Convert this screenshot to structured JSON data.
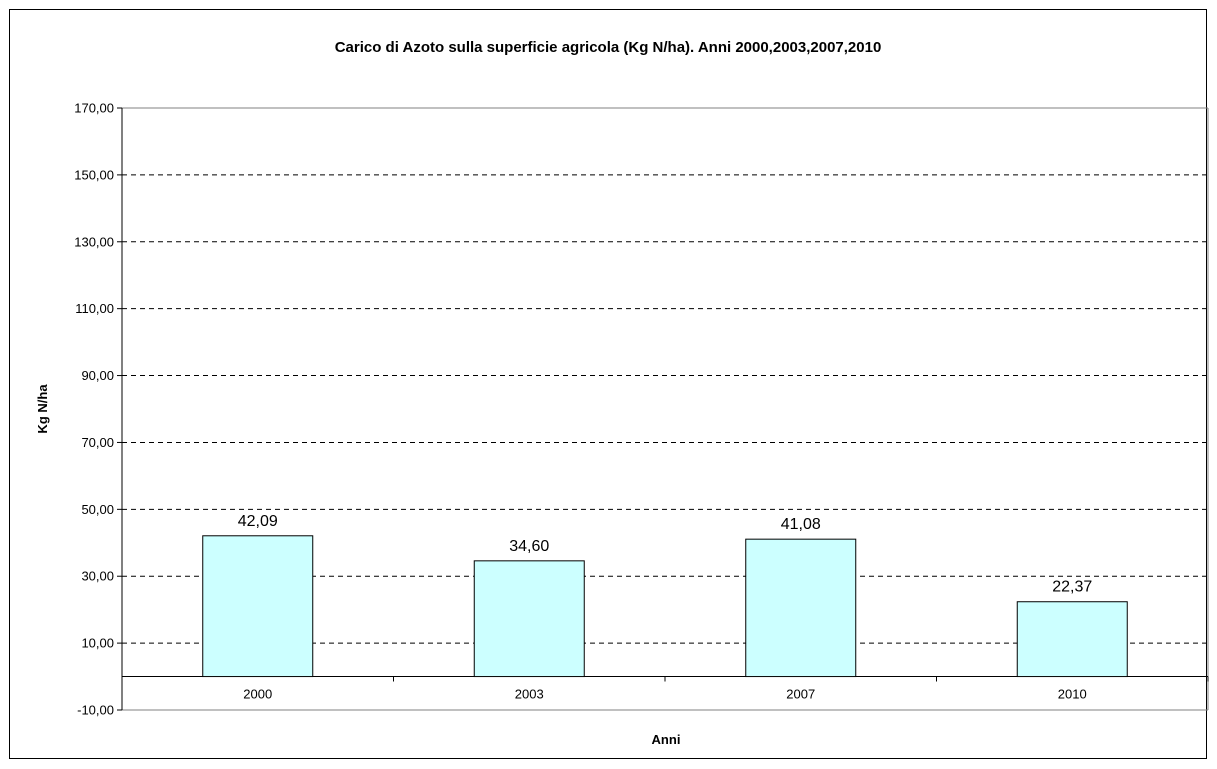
{
  "chart_data": {
    "type": "bar",
    "title": "Carico di Azoto sulla superficie agricola (Kg N/ha). Anni 2000,2003,2007,2010",
    "xlabel": "Anni",
    "ylabel": "Kg N/ha",
    "categories": [
      "2000",
      "2003",
      "2007",
      "2010"
    ],
    "values": [
      42.09,
      34.6,
      41.08,
      22.37
    ],
    "data_labels": [
      "42,09",
      "34,60",
      "41,08",
      "22,37"
    ],
    "ylim": [
      -10,
      170
    ],
    "y_ticks": [
      -10,
      10,
      30,
      50,
      70,
      90,
      110,
      130,
      150,
      170
    ],
    "y_tick_labels": [
      "-10,00",
      "10,00",
      "30,00",
      "50,00",
      "70,00",
      "90,00",
      "110,00",
      "130,00",
      "150,00",
      "170,00"
    ],
    "grid": "horizontal dashed",
    "legend": "none",
    "colors": {
      "bar_fill": "#ccffff",
      "bar_stroke": "#000000",
      "grid": "#000000"
    }
  }
}
